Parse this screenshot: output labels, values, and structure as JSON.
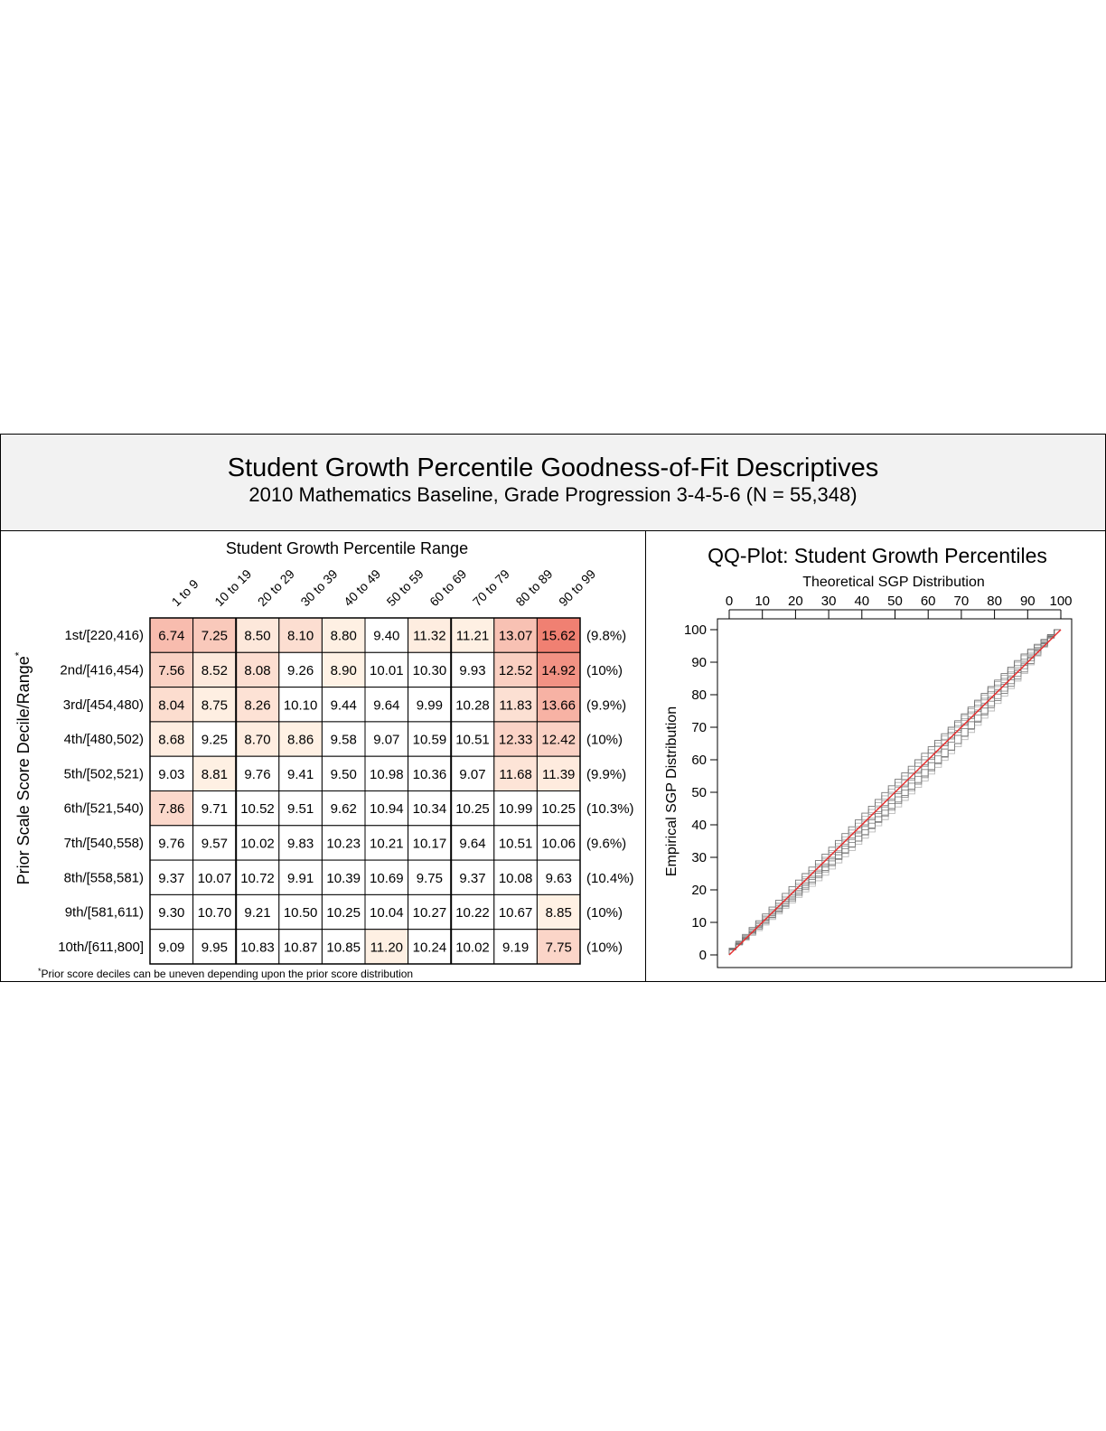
{
  "header": {
    "title": "Student Growth Percentile Goodness-of-Fit Descriptives",
    "subtitle": "2010 Mathematics Baseline, Grade Progression 3-4-5-6 (N = 55,348)"
  },
  "chart_data": [
    {
      "type": "heatmap",
      "title": "Student Growth Percentile Range",
      "ylabel": "Prior Scale Score Decile/Range",
      "ylabel_superscript": "*",
      "columns": [
        "1 to 9",
        "10 to 19",
        "20 to 29",
        "30 to 39",
        "40 to 49",
        "50 to 59",
        "60 to 69",
        "70 to 79",
        "80 to 89",
        "90 to 99"
      ],
      "rows": [
        "1st/[220,416)",
        "2nd/[416,454)",
        "3rd/[454,480)",
        "4th/[480,502)",
        "5th/[502,521)",
        "6th/[521,540)",
        "7th/[540,558)",
        "8th/[558,581)",
        "9th/[581,611)",
        "10th/[611,800]"
      ],
      "values": [
        [
          "6.74",
          "7.25",
          "8.50",
          "8.10",
          "8.80",
          "9.40",
          "11.32",
          "11.21",
          "13.07",
          "15.62"
        ],
        [
          "7.56",
          "8.52",
          "8.08",
          "9.26",
          "8.90",
          "10.01",
          "10.30",
          "9.93",
          "12.52",
          "14.92"
        ],
        [
          "8.04",
          "8.75",
          "8.26",
          "10.10",
          "9.44",
          "9.64",
          "9.99",
          "10.28",
          "11.83",
          "13.66"
        ],
        [
          "8.68",
          "9.25",
          "8.70",
          "8.86",
          "9.58",
          "9.07",
          "10.59",
          "10.51",
          "12.33",
          "12.42"
        ],
        [
          "9.03",
          "8.81",
          "9.76",
          "9.41",
          "9.50",
          "10.98",
          "10.36",
          "9.07",
          "11.68",
          "11.39"
        ],
        [
          "7.86",
          "9.71",
          "10.52",
          "9.51",
          "9.62",
          "10.94",
          "10.34",
          "10.25",
          "10.99",
          "10.25"
        ],
        [
          "9.76",
          "9.57",
          "10.02",
          "9.83",
          "10.23",
          "10.21",
          "10.17",
          "9.64",
          "10.51",
          "10.06"
        ],
        [
          "9.37",
          "10.07",
          "10.72",
          "9.91",
          "10.39",
          "10.69",
          "9.75",
          "9.37",
          "10.08",
          "9.63"
        ],
        [
          "9.30",
          "10.70",
          "9.21",
          "10.50",
          "10.25",
          "10.04",
          "10.27",
          "10.22",
          "10.67",
          "8.85"
        ],
        [
          "9.09",
          "9.95",
          "10.83",
          "10.87",
          "10.85",
          "11.20",
          "10.24",
          "10.02",
          "9.19",
          "7.75"
        ]
      ],
      "row_percents": [
        "(9.8%)",
        "(10%)",
        "(9.9%)",
        "(10%)",
        "(9.9%)",
        "(10.3%)",
        "(9.6%)",
        "(10.4%)",
        "(10%)",
        "(10%)"
      ],
      "footnote_mark": "*",
      "footnote": "Prior score deciles can be uneven depending upon the prior score distribution",
      "colors": {
        "low": "#f3c0b3",
        "high": "#f07e70",
        "mid": "#ffffff",
        "border": "#000000"
      }
    },
    {
      "type": "line",
      "title": "QQ-Plot: Student Growth Percentiles",
      "xlabel": "Theoretical SGP Distribution",
      "ylabel": "Empirical SGP Distribution",
      "xlim": [
        0,
        100
      ],
      "ylim": [
        0,
        100
      ],
      "x_ticks": [
        0,
        10,
        20,
        30,
        40,
        50,
        60,
        70,
        80,
        90,
        100
      ],
      "y_ticks": [
        0,
        10,
        20,
        30,
        40,
        50,
        60,
        70,
        80,
        90,
        100
      ],
      "reference_line": {
        "x": [
          0,
          100
        ],
        "y": [
          0,
          100
        ],
        "color": "#e53030"
      },
      "series": [
        {
          "color": "#555555",
          "x": [
            0,
            10,
            20,
            30,
            40,
            50,
            60,
            70,
            80,
            90,
            100
          ],
          "y": [
            0,
            8,
            17,
            26,
            35,
            45,
            55,
            65,
            76,
            87,
            100
          ]
        },
        {
          "color": "#666666",
          "x": [
            0,
            10,
            20,
            30,
            40,
            50,
            60,
            70,
            80,
            90,
            100
          ],
          "y": [
            0,
            8.5,
            17.5,
            27,
            36.5,
            46.5,
            57,
            67.5,
            78,
            89,
            100
          ]
        },
        {
          "color": "#777777",
          "x": [
            0,
            10,
            20,
            30,
            40,
            50,
            60,
            70,
            80,
            90,
            100
          ],
          "y": [
            0,
            9,
            18.5,
            28,
            38,
            48,
            58.5,
            69,
            79.5,
            90,
            100
          ]
        },
        {
          "color": "#888888",
          "x": [
            0,
            10,
            20,
            30,
            40,
            50,
            60,
            70,
            80,
            90,
            100
          ],
          "y": [
            0,
            9.5,
            19,
            29,
            39,
            49.5,
            60,
            70.5,
            81,
            91,
            100
          ]
        },
        {
          "color": "#999999",
          "x": [
            0,
            10,
            20,
            30,
            40,
            50,
            60,
            70,
            80,
            90,
            100
          ],
          "y": [
            0,
            10,
            20,
            30,
            40.5,
            51,
            61,
            71.5,
            82,
            92,
            100
          ]
        },
        {
          "color": "#aaaaaa",
          "x": [
            0,
            10,
            20,
            30,
            40,
            50,
            60,
            70,
            80,
            90,
            100
          ],
          "y": [
            0,
            7.5,
            16,
            24.5,
            34,
            43.5,
            53.5,
            64,
            75,
            86.5,
            100
          ]
        },
        {
          "color": "#555555",
          "x": [
            0,
            10,
            20,
            30,
            40,
            50,
            60,
            70,
            80,
            90,
            100
          ],
          "y": [
            0,
            10.5,
            21,
            31,
            41.5,
            52,
            62,
            72,
            82.5,
            92.5,
            100
          ]
        },
        {
          "color": "#777777",
          "x": [
            0,
            10,
            20,
            30,
            40,
            50,
            60,
            70,
            80,
            90,
            100
          ],
          "y": [
            0,
            8,
            16.5,
            25.5,
            35,
            44.5,
            54.5,
            65,
            76.5,
            88,
            100
          ]
        },
        {
          "color": "#999999",
          "x": [
            0,
            10,
            20,
            30,
            40,
            50,
            60,
            70,
            80,
            90,
            100
          ],
          "y": [
            0,
            9.8,
            19.5,
            29.5,
            39.5,
            50,
            60,
            70,
            80.5,
            90.5,
            100
          ]
        },
        {
          "color": "#666666",
          "x": [
            0,
            10,
            20,
            30,
            40,
            50,
            60,
            70,
            80,
            90,
            100
          ],
          "y": [
            0,
            8.8,
            18,
            27.5,
            37.5,
            47.5,
            58,
            68.5,
            79,
            89.5,
            100
          ]
        }
      ]
    }
  ]
}
